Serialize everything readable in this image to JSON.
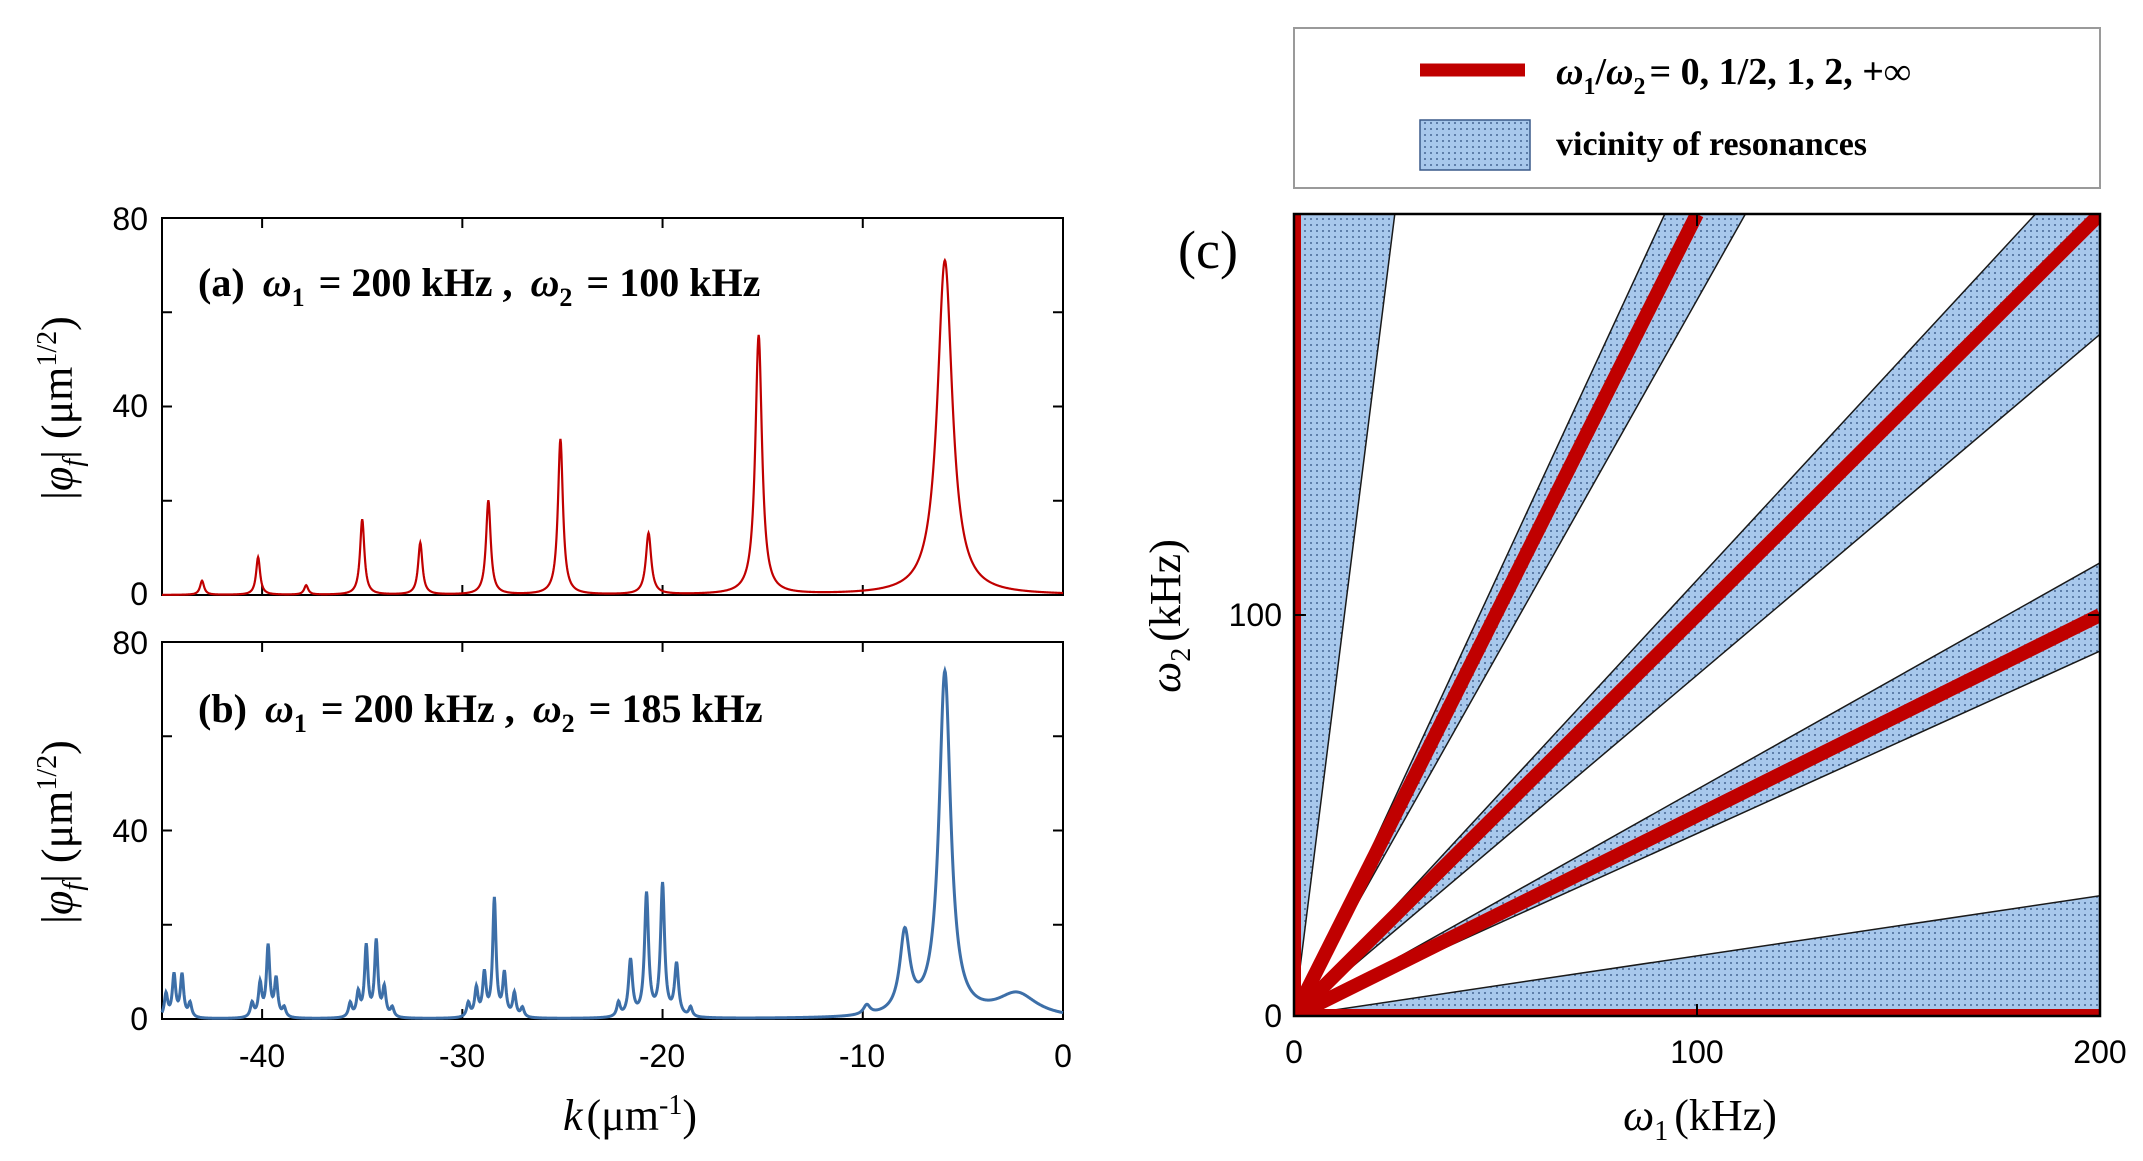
{
  "chart_data": [
    {
      "panel": "a",
      "type": "line",
      "annotation": {
        "prefix": "(a)",
        "w1_sym": "ω",
        "w1_sub": "1",
        "w1_val": "= 200 kHz ,",
        "w2_sym": "ω",
        "w2_sub": "2",
        "w2_val": "= 100 kHz"
      },
      "ylabel": {
        "open": "|",
        "sym": "φ",
        "sub": "f",
        "close": "| (μm",
        "sup": "1/2",
        "end": ")"
      },
      "xlim": [
        -45,
        0
      ],
      "ylim": [
        0,
        80
      ],
      "yticks": [
        "0",
        "40",
        "80"
      ],
      "color": "#c00000",
      "series": [
        {
          "name": "|φf|",
          "peaks": [
            {
              "k": -43.0,
              "amp": 3,
              "w": 0.12
            },
            {
              "k": -40.2,
              "amp": 8,
              "w": 0.12
            },
            {
              "k": -37.8,
              "amp": 2,
              "w": 0.12
            },
            {
              "k": -35.0,
              "amp": 16,
              "w": 0.13
            },
            {
              "k": -32.1,
              "amp": 11,
              "w": 0.13
            },
            {
              "k": -28.7,
              "amp": 20,
              "w": 0.14
            },
            {
              "k": -25.1,
              "amp": 33,
              "w": 0.15
            },
            {
              "k": -20.7,
              "amp": 13,
              "w": 0.16
            },
            {
              "k": -15.2,
              "amp": 55,
              "w": 0.2
            },
            {
              "k": -5.9,
              "amp": 71,
              "w": 0.45
            }
          ]
        }
      ]
    },
    {
      "panel": "b",
      "type": "line",
      "annotation": {
        "prefix": "(b)",
        "w1_sym": "ω",
        "w1_sub": "1",
        "w1_val": "= 200 kHz ,",
        "w2_sym": "ω",
        "w2_sub": "2",
        "w2_val": "= 185 kHz"
      },
      "ylabel": {
        "open": "|",
        "sym": "φ",
        "sub": "f",
        "close": "| (μm",
        "sup": "1/2",
        "end": ")"
      },
      "xlabel": {
        "sym": "k",
        "text": "(μm",
        "sup": "-1",
        "end": ")"
      },
      "xlim": [
        -45,
        0
      ],
      "ylim": [
        0,
        80
      ],
      "xticks": [
        "-40",
        "-30",
        "-20",
        "-10",
        "0"
      ],
      "yticks": [
        "0",
        "40",
        "80"
      ],
      "color": "#3d6fa8",
      "series": [
        {
          "name": "|φf|",
          "peaks": [
            {
              "k": -44.8,
              "amp": 5,
              "w": 0.1
            },
            {
              "k": -44.4,
              "amp": 9,
              "w": 0.1
            },
            {
              "k": -44.0,
              "amp": 9,
              "w": 0.1
            },
            {
              "k": -43.6,
              "amp": 3,
              "w": 0.1
            },
            {
              "k": -40.5,
              "amp": 3,
              "w": 0.1
            },
            {
              "k": -40.1,
              "amp": 7,
              "w": 0.1
            },
            {
              "k": -39.7,
              "amp": 15,
              "w": 0.1
            },
            {
              "k": -39.3,
              "amp": 8,
              "w": 0.1
            },
            {
              "k": -38.9,
              "amp": 2,
              "w": 0.1
            },
            {
              "k": -35.6,
              "amp": 3,
              "w": 0.1
            },
            {
              "k": -35.2,
              "amp": 5,
              "w": 0.1
            },
            {
              "k": -34.8,
              "amp": 15,
              "w": 0.1
            },
            {
              "k": -34.3,
              "amp": 16,
              "w": 0.1
            },
            {
              "k": -33.9,
              "amp": 6,
              "w": 0.1
            },
            {
              "k": -33.5,
              "amp": 2,
              "w": 0.1
            },
            {
              "k": -29.7,
              "amp": 3,
              "w": 0.1
            },
            {
              "k": -29.3,
              "amp": 6,
              "w": 0.1
            },
            {
              "k": -28.9,
              "amp": 9,
              "w": 0.1
            },
            {
              "k": -28.4,
              "amp": 25,
              "w": 0.1
            },
            {
              "k": -27.9,
              "amp": 9,
              "w": 0.1
            },
            {
              "k": -27.4,
              "amp": 5,
              "w": 0.1
            },
            {
              "k": -27.0,
              "amp": 2,
              "w": 0.1
            },
            {
              "k": -22.2,
              "amp": 3,
              "w": 0.1
            },
            {
              "k": -21.6,
              "amp": 12,
              "w": 0.12
            },
            {
              "k": -20.8,
              "amp": 26,
              "w": 0.12
            },
            {
              "k": -20.0,
              "amp": 28,
              "w": 0.12
            },
            {
              "k": -19.3,
              "amp": 11,
              "w": 0.12
            },
            {
              "k": -18.6,
              "amp": 2,
              "w": 0.1
            },
            {
              "k": -9.8,
              "amp": 2,
              "w": 0.2
            },
            {
              "k": -7.9,
              "amp": 17,
              "w": 0.3
            },
            {
              "k": -5.9,
              "amp": 73,
              "w": 0.35
            },
            {
              "k": -2.3,
              "amp": 5,
              "w": 1.2
            }
          ]
        }
      ]
    },
    {
      "panel": "c",
      "type": "area",
      "label": "(c)",
      "xlabel": {
        "sym": "ω",
        "sub": "1",
        "text": "(kHz)"
      },
      "ylabel": {
        "sym": "ω",
        "sub": "2",
        "text": "(kHz)"
      },
      "xlim": [
        0,
        200
      ],
      "ylim": [
        0,
        200
      ],
      "xticks": [
        "0",
        "100",
        "200"
      ],
      "yticks": [
        "0",
        "100"
      ],
      "resonance_color": "#c00000",
      "band_color": "#a8c8ec",
      "legend": {
        "position": "top",
        "line_label": {
          "sym1": "ω",
          "sub1": "1",
          "slash": "/",
          "sym2": "ω",
          "sub2": "2",
          "text": "= 0, 1/2, 1, 2, +∞"
        },
        "band_label": "vicinity of resonances"
      },
      "resonance_ratios": [
        "0",
        "1/2",
        "1",
        "2",
        "+∞"
      ],
      "bands": [
        {
          "ratio": "+∞",
          "polygon": [
            [
              0,
              0
            ],
            [
              0,
              200
            ],
            [
              25,
              200
            ]
          ]
        },
        {
          "ratio": "1/2",
          "polygon": [
            [
              0,
              0
            ],
            [
              92,
              200
            ],
            [
              112,
              200
            ]
          ]
        },
        {
          "ratio": "1",
          "polygon": [
            [
              0,
              0
            ],
            [
              200,
              200
            ],
            [
              200,
              170
            ],
            [
              0,
              0
            ]
          ]
        },
        {
          "ratio": "1",
          "polygon": [
            [
              0,
              0
            ],
            [
              200,
              200
            ],
            [
              184,
              200
            ]
          ]
        },
        {
          "ratio": "2",
          "polygon": [
            [
              0,
              0
            ],
            [
              200,
              113
            ],
            [
              200,
              91
            ]
          ]
        },
        {
          "ratio": "0",
          "polygon": [
            [
              0,
              0
            ],
            [
              200,
              30
            ],
            [
              200,
              0
            ]
          ]
        }
      ],
      "lines": [
        {
          "ratio": "0",
          "from": [
            0,
            0
          ],
          "to": [
            200,
            0
          ]
        },
        {
          "ratio": "+∞",
          "from": [
            0,
            0
          ],
          "to": [
            0,
            200
          ]
        },
        {
          "ratio": "1/2",
          "from": [
            0,
            0
          ],
          "to": [
            100,
            200
          ]
        },
        {
          "ratio": "1",
          "from": [
            0,
            0
          ],
          "to": [
            200,
            200
          ]
        },
        {
          "ratio": "2",
          "from": [
            0,
            0
          ],
          "to": [
            200,
            100
          ]
        }
      ]
    }
  ]
}
